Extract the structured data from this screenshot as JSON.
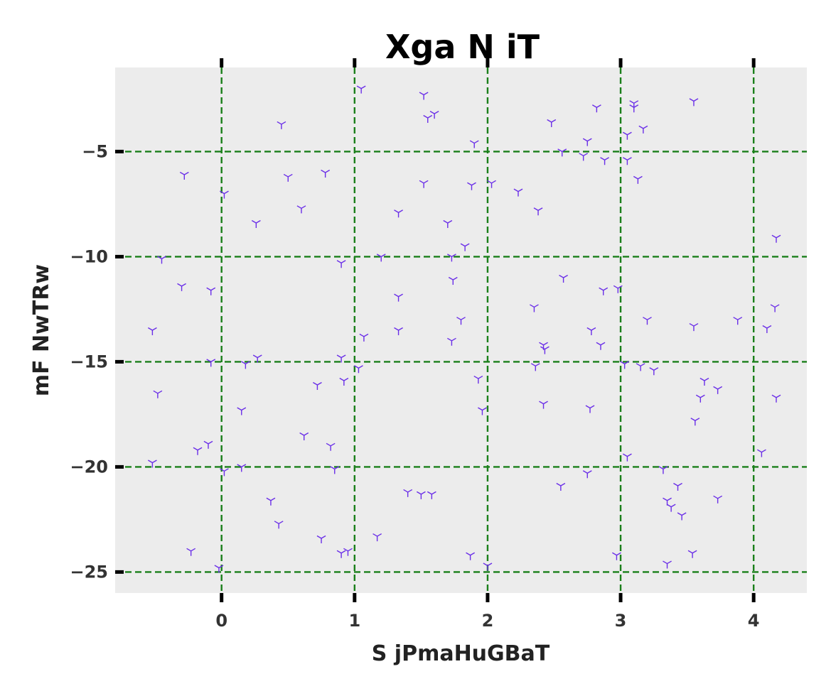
{
  "chart_data": {
    "type": "scatter",
    "title": "Xga N iT",
    "xlabel": "S jPmaHuGBaT",
    "ylabel": "mF NwTRw",
    "xlim": [
      -0.8,
      4.4
    ],
    "ylim": [
      -26.0,
      -1.0
    ],
    "x_ticks": [
      0,
      1,
      2,
      3,
      4
    ],
    "x_tick_labels": [
      "0",
      "1",
      "2",
      "3",
      "4"
    ],
    "y_ticks": [
      -5,
      -10,
      -15,
      -20,
      -25
    ],
    "y_tick_labels": [
      "−5",
      "−10",
      "−15",
      "−20",
      "−25"
    ],
    "grid": true,
    "colors": {
      "background": "#ececec",
      "grid": "#1a7f1a",
      "marker": "#6a2ee8",
      "tick": "#000000"
    },
    "marker": "tri_down",
    "series": [
      {
        "points": [
          [
            1.05,
            -2.0
          ],
          [
            1.52,
            -2.3
          ],
          [
            1.55,
            -3.4
          ],
          [
            1.6,
            -3.2
          ],
          [
            0.45,
            -3.7
          ],
          [
            -0.52,
            -13.5
          ],
          [
            -0.48,
            -16.5
          ],
          [
            -0.52,
            -19.8
          ],
          [
            -0.28,
            -6.1
          ],
          [
            -0.45,
            -10.1
          ],
          [
            -0.3,
            -11.4
          ],
          [
            -0.08,
            -11.6
          ],
          [
            -0.08,
            -15.0
          ],
          [
            -0.18,
            -19.2
          ],
          [
            -0.1,
            -18.9
          ],
          [
            -0.23,
            -24.0
          ],
          [
            -0.02,
            -24.8
          ],
          [
            0.02,
            -7.0
          ],
          [
            0.02,
            -20.2
          ],
          [
            0.15,
            -20.0
          ],
          [
            0.15,
            -17.3
          ],
          [
            0.18,
            -15.1
          ],
          [
            0.27,
            -14.8
          ],
          [
            0.26,
            -8.4
          ],
          [
            0.37,
            -21.6
          ],
          [
            0.43,
            -22.7
          ],
          [
            0.5,
            -6.2
          ],
          [
            0.6,
            -7.7
          ],
          [
            0.62,
            -18.5
          ],
          [
            0.72,
            -16.1
          ],
          [
            0.75,
            -23.4
          ],
          [
            0.78,
            -6.0
          ],
          [
            0.82,
            -19.0
          ],
          [
            0.85,
            -20.1
          ],
          [
            0.9,
            -10.3
          ],
          [
            0.9,
            -14.8
          ],
          [
            0.92,
            -15.9
          ],
          [
            0.9,
            -24.1
          ],
          [
            0.95,
            -24.0
          ],
          [
            1.03,
            -15.3
          ],
          [
            1.07,
            -13.8
          ],
          [
            1.2,
            -10.0
          ],
          [
            1.33,
            -7.9
          ],
          [
            1.33,
            -11.9
          ],
          [
            1.33,
            -13.5
          ],
          [
            1.17,
            -23.3
          ],
          [
            1.4,
            -21.2
          ],
          [
            1.5,
            -21.3
          ],
          [
            1.58,
            -21.3
          ],
          [
            1.52,
            -6.5
          ],
          [
            1.7,
            -8.4
          ],
          [
            1.73,
            -10.0
          ],
          [
            1.74,
            -11.1
          ],
          [
            1.73,
            -14.0
          ],
          [
            1.8,
            -13.0
          ],
          [
            1.83,
            -9.5
          ],
          [
            1.88,
            -6.6
          ],
          [
            1.9,
            -4.6
          ],
          [
            1.93,
            -15.8
          ],
          [
            1.96,
            -17.3
          ],
          [
            1.87,
            -24.2
          ],
          [
            2.0,
            -24.7
          ],
          [
            2.03,
            -6.5
          ],
          [
            2.23,
            -6.9
          ],
          [
            2.38,
            -7.8
          ],
          [
            2.35,
            -12.4
          ],
          [
            2.42,
            -14.2
          ],
          [
            2.43,
            -14.4
          ],
          [
            2.36,
            -15.2
          ],
          [
            2.42,
            -17.0
          ],
          [
            2.48,
            -3.6
          ],
          [
            2.56,
            -5.0
          ],
          [
            2.57,
            -11.0
          ],
          [
            2.55,
            -20.9
          ],
          [
            2.72,
            -5.2
          ],
          [
            2.75,
            -4.5
          ],
          [
            2.82,
            -2.9
          ],
          [
            2.78,
            -13.5
          ],
          [
            2.85,
            -14.2
          ],
          [
            2.87,
            -11.6
          ],
          [
            2.88,
            -5.4
          ],
          [
            2.77,
            -17.2
          ],
          [
            2.75,
            -20.3
          ],
          [
            2.98,
            -11.5
          ],
          [
            3.03,
            -15.1
          ],
          [
            3.05,
            -19.5
          ],
          [
            2.97,
            -24.2
          ],
          [
            3.05,
            -4.2
          ],
          [
            3.05,
            -5.4
          ],
          [
            3.1,
            -2.7
          ],
          [
            3.1,
            -2.9
          ],
          [
            3.17,
            -3.9
          ],
          [
            3.13,
            -6.3
          ],
          [
            3.15,
            -15.2
          ],
          [
            3.2,
            -13.0
          ],
          [
            3.25,
            -15.4
          ],
          [
            3.32,
            -20.1
          ],
          [
            3.35,
            -21.6
          ],
          [
            3.38,
            -21.9
          ],
          [
            3.43,
            -20.9
          ],
          [
            3.46,
            -22.3
          ],
          [
            3.35,
            -24.6
          ],
          [
            3.55,
            -2.6
          ],
          [
            3.55,
            -13.3
          ],
          [
            3.56,
            -17.8
          ],
          [
            3.6,
            -16.7
          ],
          [
            3.63,
            -15.9
          ],
          [
            3.73,
            -16.3
          ],
          [
            3.73,
            -21.5
          ],
          [
            3.54,
            -24.1
          ],
          [
            3.88,
            -13.0
          ],
          [
            4.06,
            -19.3
          ],
          [
            4.1,
            -13.4
          ],
          [
            4.16,
            -12.4
          ],
          [
            4.17,
            -16.7
          ],
          [
            4.17,
            -9.1
          ]
        ]
      }
    ]
  }
}
